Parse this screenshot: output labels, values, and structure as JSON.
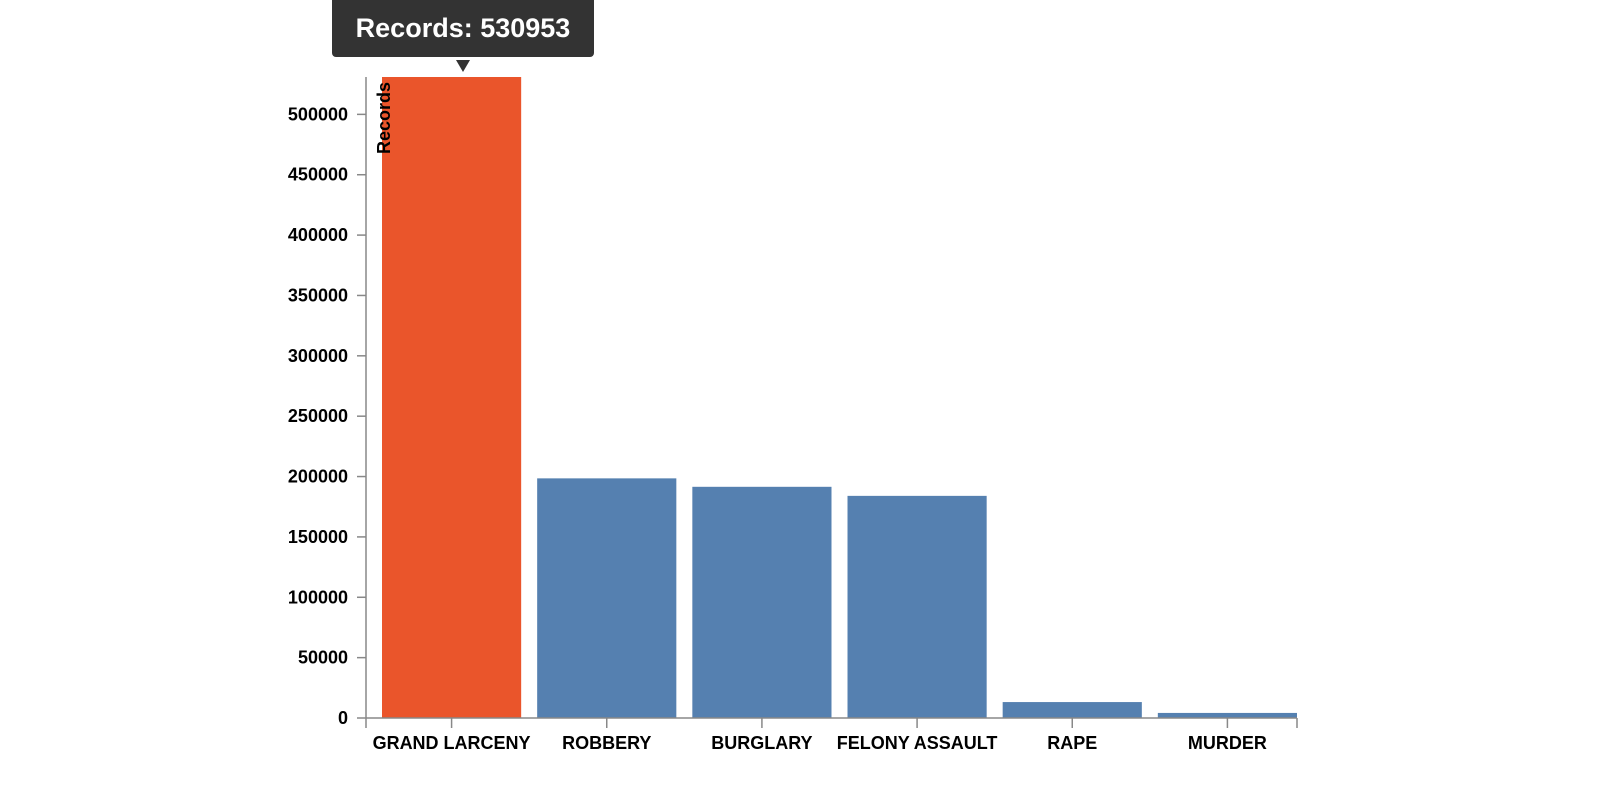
{
  "chart_data": {
    "type": "bar",
    "categories": [
      "GRAND LARCENY",
      "ROBBERY",
      "BURGLARY",
      "FELONY ASSAULT",
      "RAPE",
      "MURDER"
    ],
    "values": [
      530953,
      198500,
      191500,
      184000,
      13200,
      4200
    ],
    "highlighted_index": 0,
    "ylabel": "Records",
    "xlabel": "",
    "ylim": [
      0,
      530953
    ],
    "yticks": [
      0,
      50000,
      100000,
      150000,
      200000,
      250000,
      300000,
      350000,
      400000,
      450000,
      500000
    ],
    "grid": false,
    "colors": {
      "bar": "#5580b0",
      "highlight": "#ea552b",
      "axis": "#888888"
    }
  },
  "tooltip": {
    "text": "Records: 530953"
  }
}
